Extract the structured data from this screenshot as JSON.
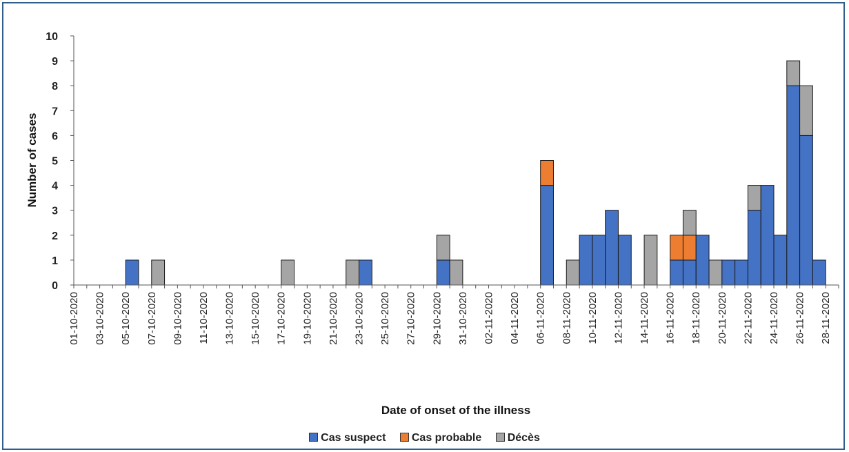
{
  "chart_data": {
    "type": "bar",
    "stacked": true,
    "title": "",
    "xlabel": "Date of onset of the illness",
    "ylabel": "Number of cases",
    "ylim": [
      0,
      10
    ],
    "yticks": [
      0,
      1,
      2,
      3,
      4,
      5,
      6,
      7,
      8,
      9,
      10
    ],
    "grid": false,
    "legend_position": "bottom",
    "categories": [
      "01-10-2020",
      "02-10-2020",
      "03-10-2020",
      "04-10-2020",
      "05-10-2020",
      "06-10-2020",
      "07-10-2020",
      "08-10-2020",
      "09-10-2020",
      "10-10-2020",
      "11-10-2020",
      "12-10-2020",
      "13-10-2020",
      "14-10-2020",
      "15-10-2020",
      "16-10-2020",
      "17-10-2020",
      "18-10-2020",
      "19-10-2020",
      "20-10-2020",
      "21-10-2020",
      "22-10-2020",
      "23-10-2020",
      "24-10-2020",
      "25-10-2020",
      "26-10-2020",
      "27-10-2020",
      "28-10-2020",
      "29-10-2020",
      "30-10-2020",
      "31-10-2020",
      "01-11-2020",
      "02-11-2020",
      "03-11-2020",
      "04-11-2020",
      "05-11-2020",
      "06-11-2020",
      "07-11-2020",
      "08-11-2020",
      "09-11-2020",
      "10-11-2020",
      "11-11-2020",
      "12-11-2020",
      "13-11-2020",
      "14-11-2020",
      "15-11-2020",
      "16-11-2020",
      "17-11-2020",
      "18-11-2020",
      "19-11-2020",
      "20-11-2020",
      "21-11-2020",
      "22-11-2020",
      "23-11-2020",
      "24-11-2020",
      "25-11-2020",
      "26-11-2020",
      "27-11-2020",
      "28-11-2020"
    ],
    "tick_labels": [
      "01-10-2020",
      "03-10-2020",
      "05-10-2020",
      "07-10-2020",
      "09-10-2020",
      "11-10-2020",
      "13-10-2020",
      "15-10-2020",
      "17-10-2020",
      "19-10-2020",
      "21-10-2020",
      "23-10-2020",
      "25-10-2020",
      "27-10-2020",
      "29-10-2020",
      "31-10-2020",
      "02-11-2020",
      "04-11-2020",
      "06-11-2020",
      "08-11-2020",
      "10-11-2020",
      "12-11-2020",
      "14-11-2020",
      "16-11-2020",
      "18-11-2020",
      "20-11-2020",
      "22-11-2020",
      "24-11-2020",
      "26-11-2020",
      "28-11-2020"
    ],
    "series": [
      {
        "name": "Cas suspect",
        "color": "#4472c4",
        "values": [
          0,
          0,
          0,
          0,
          1,
          0,
          0,
          0,
          0,
          0,
          0,
          0,
          0,
          0,
          0,
          0,
          0,
          0,
          0,
          0,
          0,
          0,
          1,
          0,
          0,
          0,
          0,
          0,
          1,
          0,
          0,
          0,
          0,
          0,
          0,
          0,
          4,
          0,
          0,
          2,
          2,
          3,
          2,
          0,
          0,
          0,
          1,
          1,
          2,
          0,
          1,
          1,
          3,
          4,
          2,
          8,
          6,
          1,
          0
        ]
      },
      {
        "name": "Cas probable",
        "color": "#ed7d31",
        "values": [
          0,
          0,
          0,
          0,
          0,
          0,
          0,
          0,
          0,
          0,
          0,
          0,
          0,
          0,
          0,
          0,
          0,
          0,
          0,
          0,
          0,
          0,
          0,
          0,
          0,
          0,
          0,
          0,
          0,
          0,
          0,
          0,
          0,
          0,
          0,
          0,
          1,
          0,
          0,
          0,
          0,
          0,
          0,
          0,
          0,
          0,
          1,
          1,
          0,
          0,
          0,
          0,
          0,
          0,
          0,
          0,
          0,
          0,
          0
        ]
      },
      {
        "name": "Décès",
        "color": "#a5a5a5",
        "values": [
          0,
          0,
          0,
          0,
          0,
          0,
          1,
          0,
          0,
          0,
          0,
          0,
          0,
          0,
          0,
          0,
          1,
          0,
          0,
          0,
          0,
          1,
          0,
          0,
          0,
          0,
          0,
          0,
          1,
          1,
          0,
          0,
          0,
          0,
          0,
          0,
          0,
          0,
          1,
          0,
          0,
          0,
          0,
          0,
          2,
          0,
          0,
          1,
          0,
          1,
          0,
          0,
          1,
          0,
          0,
          1,
          2,
          0,
          0
        ]
      }
    ]
  }
}
